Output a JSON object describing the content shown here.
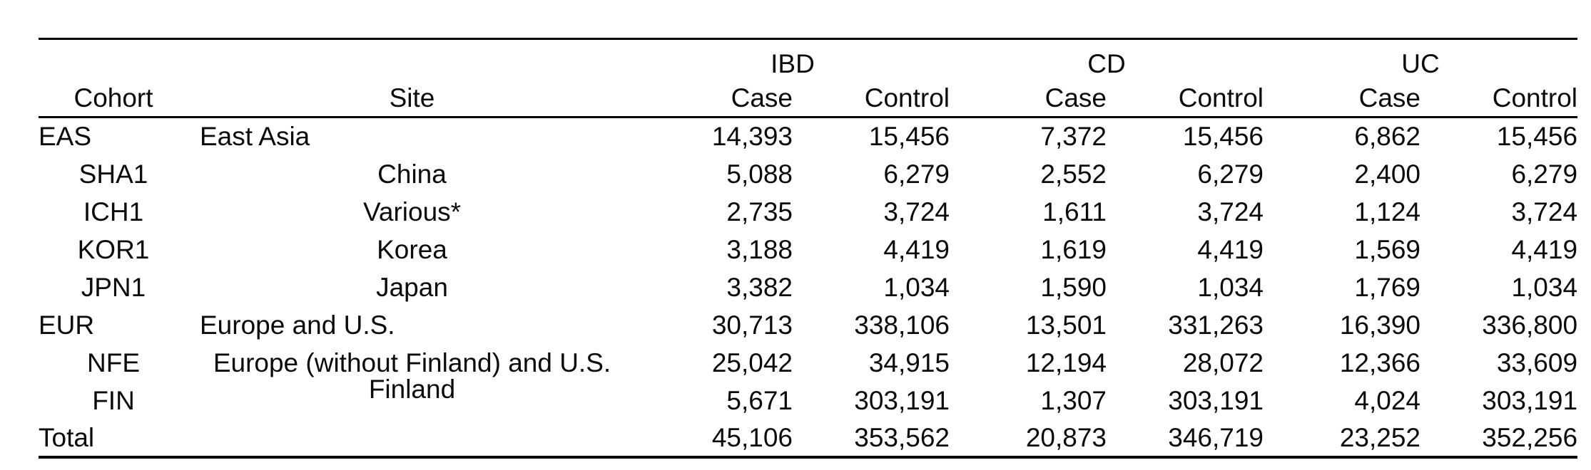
{
  "table": {
    "group_headers": {
      "ibd": "IBD",
      "cd": "CD",
      "uc": "UC"
    },
    "column_headers": {
      "cohort": "Cohort",
      "site": "Site",
      "case": "Case",
      "control": "Control"
    },
    "rows": [
      {
        "cohort": "EAS",
        "site": "East Asia",
        "ibd_case": "14,393",
        "ibd_control": "15,456",
        "cd_case": "7,372",
        "cd_control": "15,456",
        "uc_case": "6,862",
        "uc_control": "15,456"
      },
      {
        "cohort": "SHA1",
        "site": "China",
        "ibd_case": "5,088",
        "ibd_control": "6,279",
        "cd_case": "2,552",
        "cd_control": "6,279",
        "uc_case": "2,400",
        "uc_control": "6,279"
      },
      {
        "cohort": "ICH1",
        "site": "Various*",
        "ibd_case": "2,735",
        "ibd_control": "3,724",
        "cd_case": "1,611",
        "cd_control": "3,724",
        "uc_case": "1,124",
        "uc_control": "3,724"
      },
      {
        "cohort": "KOR1",
        "site": "Korea",
        "ibd_case": "3,188",
        "ibd_control": "4,419",
        "cd_case": "1,619",
        "cd_control": "4,419",
        "uc_case": "1,569",
        "uc_control": "4,419"
      },
      {
        "cohort": "JPN1",
        "site": "Japan",
        "ibd_case": "3,382",
        "ibd_control": "1,034",
        "cd_case": "1,590",
        "cd_control": "1,034",
        "uc_case": "1,769",
        "uc_control": "1,034"
      },
      {
        "cohort": "EUR",
        "site": "Europe and U.S.",
        "ibd_case": "30,713",
        "ibd_control": "338,106",
        "cd_case": "13,501",
        "cd_control": "331,263",
        "uc_case": "16,390",
        "uc_control": "336,800"
      },
      {
        "cohort": "NFE",
        "site": "Europe (without Finland) and U.S.",
        "ibd_case": "25,042",
        "ibd_control": "34,915",
        "cd_case": "12,194",
        "cd_control": "28,072",
        "uc_case": "12,366",
        "uc_control": "33,609"
      },
      {
        "cohort": "FIN",
        "site": "Finland",
        "ibd_case": "5,671",
        "ibd_control": "303,191",
        "cd_case": "1,307",
        "cd_control": "303,191",
        "uc_case": "4,024",
        "uc_control": "303,191"
      },
      {
        "cohort": "Total",
        "site": "",
        "ibd_case": "45,106",
        "ibd_control": "353,562",
        "cd_case": "20,873",
        "cd_control": "346,719",
        "uc_case": "23,252",
        "uc_control": "352,256"
      }
    ]
  }
}
